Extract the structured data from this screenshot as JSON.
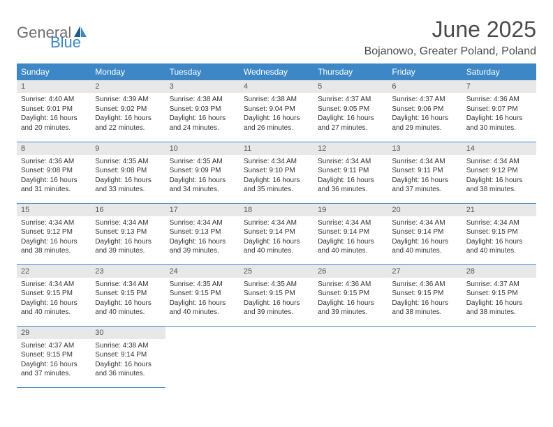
{
  "logo": {
    "general": "General",
    "blue": "Blue"
  },
  "title": "June 2025",
  "location": "Bojanowo, Greater Poland, Poland",
  "colors": {
    "header_bg": "#3d87c7",
    "header_text": "#ffffff",
    "daynum_bg": "#e8e8e8",
    "border": "#3d87c7",
    "logo_blue": "#3d87c7",
    "logo_gray": "#6e6e6e"
  },
  "weekdays": [
    "Sunday",
    "Monday",
    "Tuesday",
    "Wednesday",
    "Thursday",
    "Friday",
    "Saturday"
  ],
  "days": [
    {
      "num": "1",
      "sunrise": "Sunrise: 4:40 AM",
      "sunset": "Sunset: 9:01 PM",
      "daylight1": "Daylight: 16 hours",
      "daylight2": "and 20 minutes."
    },
    {
      "num": "2",
      "sunrise": "Sunrise: 4:39 AM",
      "sunset": "Sunset: 9:02 PM",
      "daylight1": "Daylight: 16 hours",
      "daylight2": "and 22 minutes."
    },
    {
      "num": "3",
      "sunrise": "Sunrise: 4:38 AM",
      "sunset": "Sunset: 9:03 PM",
      "daylight1": "Daylight: 16 hours",
      "daylight2": "and 24 minutes."
    },
    {
      "num": "4",
      "sunrise": "Sunrise: 4:38 AM",
      "sunset": "Sunset: 9:04 PM",
      "daylight1": "Daylight: 16 hours",
      "daylight2": "and 26 minutes."
    },
    {
      "num": "5",
      "sunrise": "Sunrise: 4:37 AM",
      "sunset": "Sunset: 9:05 PM",
      "daylight1": "Daylight: 16 hours",
      "daylight2": "and 27 minutes."
    },
    {
      "num": "6",
      "sunrise": "Sunrise: 4:37 AM",
      "sunset": "Sunset: 9:06 PM",
      "daylight1": "Daylight: 16 hours",
      "daylight2": "and 29 minutes."
    },
    {
      "num": "7",
      "sunrise": "Sunrise: 4:36 AM",
      "sunset": "Sunset: 9:07 PM",
      "daylight1": "Daylight: 16 hours",
      "daylight2": "and 30 minutes."
    },
    {
      "num": "8",
      "sunrise": "Sunrise: 4:36 AM",
      "sunset": "Sunset: 9:08 PM",
      "daylight1": "Daylight: 16 hours",
      "daylight2": "and 31 minutes."
    },
    {
      "num": "9",
      "sunrise": "Sunrise: 4:35 AM",
      "sunset": "Sunset: 9:08 PM",
      "daylight1": "Daylight: 16 hours",
      "daylight2": "and 33 minutes."
    },
    {
      "num": "10",
      "sunrise": "Sunrise: 4:35 AM",
      "sunset": "Sunset: 9:09 PM",
      "daylight1": "Daylight: 16 hours",
      "daylight2": "and 34 minutes."
    },
    {
      "num": "11",
      "sunrise": "Sunrise: 4:34 AM",
      "sunset": "Sunset: 9:10 PM",
      "daylight1": "Daylight: 16 hours",
      "daylight2": "and 35 minutes."
    },
    {
      "num": "12",
      "sunrise": "Sunrise: 4:34 AM",
      "sunset": "Sunset: 9:11 PM",
      "daylight1": "Daylight: 16 hours",
      "daylight2": "and 36 minutes."
    },
    {
      "num": "13",
      "sunrise": "Sunrise: 4:34 AM",
      "sunset": "Sunset: 9:11 PM",
      "daylight1": "Daylight: 16 hours",
      "daylight2": "and 37 minutes."
    },
    {
      "num": "14",
      "sunrise": "Sunrise: 4:34 AM",
      "sunset": "Sunset: 9:12 PM",
      "daylight1": "Daylight: 16 hours",
      "daylight2": "and 38 minutes."
    },
    {
      "num": "15",
      "sunrise": "Sunrise: 4:34 AM",
      "sunset": "Sunset: 9:12 PM",
      "daylight1": "Daylight: 16 hours",
      "daylight2": "and 38 minutes."
    },
    {
      "num": "16",
      "sunrise": "Sunrise: 4:34 AM",
      "sunset": "Sunset: 9:13 PM",
      "daylight1": "Daylight: 16 hours",
      "daylight2": "and 39 minutes."
    },
    {
      "num": "17",
      "sunrise": "Sunrise: 4:34 AM",
      "sunset": "Sunset: 9:13 PM",
      "daylight1": "Daylight: 16 hours",
      "daylight2": "and 39 minutes."
    },
    {
      "num": "18",
      "sunrise": "Sunrise: 4:34 AM",
      "sunset": "Sunset: 9:14 PM",
      "daylight1": "Daylight: 16 hours",
      "daylight2": "and 40 minutes."
    },
    {
      "num": "19",
      "sunrise": "Sunrise: 4:34 AM",
      "sunset": "Sunset: 9:14 PM",
      "daylight1": "Daylight: 16 hours",
      "daylight2": "and 40 minutes."
    },
    {
      "num": "20",
      "sunrise": "Sunrise: 4:34 AM",
      "sunset": "Sunset: 9:14 PM",
      "daylight1": "Daylight: 16 hours",
      "daylight2": "and 40 minutes."
    },
    {
      "num": "21",
      "sunrise": "Sunrise: 4:34 AM",
      "sunset": "Sunset: 9:15 PM",
      "daylight1": "Daylight: 16 hours",
      "daylight2": "and 40 minutes."
    },
    {
      "num": "22",
      "sunrise": "Sunrise: 4:34 AM",
      "sunset": "Sunset: 9:15 PM",
      "daylight1": "Daylight: 16 hours",
      "daylight2": "and 40 minutes."
    },
    {
      "num": "23",
      "sunrise": "Sunrise: 4:34 AM",
      "sunset": "Sunset: 9:15 PM",
      "daylight1": "Daylight: 16 hours",
      "daylight2": "and 40 minutes."
    },
    {
      "num": "24",
      "sunrise": "Sunrise: 4:35 AM",
      "sunset": "Sunset: 9:15 PM",
      "daylight1": "Daylight: 16 hours",
      "daylight2": "and 40 minutes."
    },
    {
      "num": "25",
      "sunrise": "Sunrise: 4:35 AM",
      "sunset": "Sunset: 9:15 PM",
      "daylight1": "Daylight: 16 hours",
      "daylight2": "and 39 minutes."
    },
    {
      "num": "26",
      "sunrise": "Sunrise: 4:36 AM",
      "sunset": "Sunset: 9:15 PM",
      "daylight1": "Daylight: 16 hours",
      "daylight2": "and 39 minutes."
    },
    {
      "num": "27",
      "sunrise": "Sunrise: 4:36 AM",
      "sunset": "Sunset: 9:15 PM",
      "daylight1": "Daylight: 16 hours",
      "daylight2": "and 38 minutes."
    },
    {
      "num": "28",
      "sunrise": "Sunrise: 4:37 AM",
      "sunset": "Sunset: 9:15 PM",
      "daylight1": "Daylight: 16 hours",
      "daylight2": "and 38 minutes."
    },
    {
      "num": "29",
      "sunrise": "Sunrise: 4:37 AM",
      "sunset": "Sunset: 9:15 PM",
      "daylight1": "Daylight: 16 hours",
      "daylight2": "and 37 minutes."
    },
    {
      "num": "30",
      "sunrise": "Sunrise: 4:38 AM",
      "sunset": "Sunset: 9:14 PM",
      "daylight1": "Daylight: 16 hours",
      "daylight2": "and 36 minutes."
    }
  ]
}
